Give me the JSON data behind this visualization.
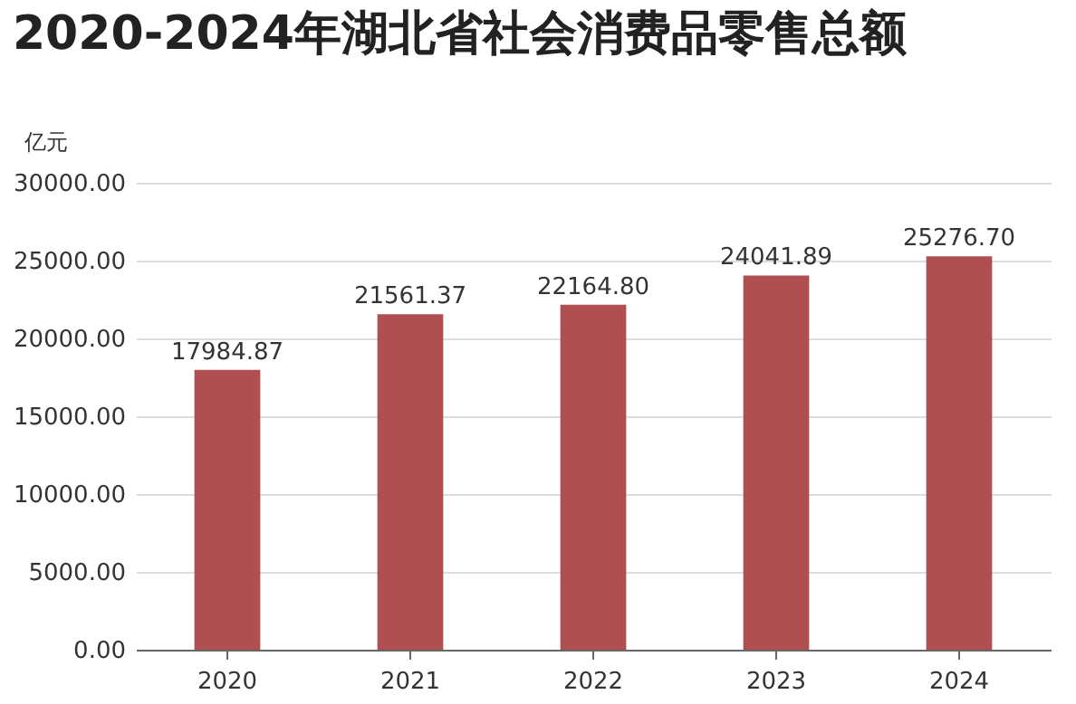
{
  "chart_data": {
    "type": "bar",
    "title": "2020-2024年湖北省社会消费品零售总额",
    "ylabel": "亿元",
    "categories": [
      "2020",
      "2021",
      "2022",
      "2023",
      "2024"
    ],
    "values": [
      17984.87,
      21561.37,
      22164.8,
      24041.89,
      25276.7
    ],
    "value_labels": [
      "17984.87",
      "21561.37",
      "22164.80",
      "24041.89",
      "25276.70"
    ],
    "color": "#b04f52",
    "ylim": [
      0,
      30000
    ],
    "yticks": [
      {
        "value": 0,
        "label": "0.00"
      },
      {
        "value": 5000,
        "label": "5000.00"
      },
      {
        "value": 10000,
        "label": "10000.00"
      },
      {
        "value": 15000,
        "label": "15000.00"
      },
      {
        "value": 20000,
        "label": "20000.00"
      },
      {
        "value": 25000,
        "label": "25000.00"
      },
      {
        "value": 30000,
        "label": "30000.00"
      }
    ],
    "grid": "y"
  }
}
